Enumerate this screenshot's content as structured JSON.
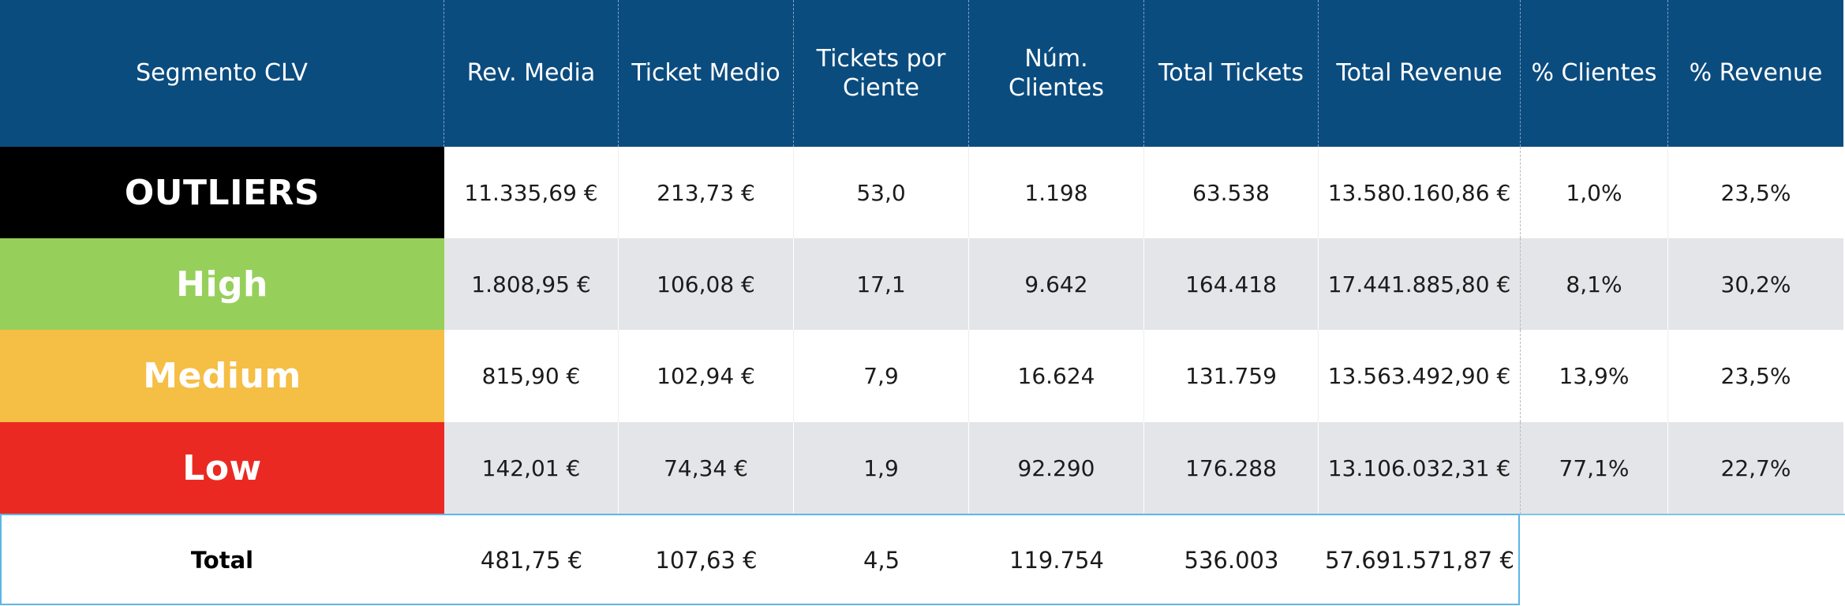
{
  "headers": [
    "Segmento CLV",
    "Rev. Media",
    "Ticket Medio",
    "Tickets por\nCiente",
    "Núm.\nClientes",
    "Total Tickets",
    "Total Revenue",
    "% Clientes",
    "% Revenue"
  ],
  "rows": [
    {
      "segment": "OUTLIERS",
      "rev_media": "11.335,69 €",
      "ticket_medio": "213,73 €",
      "tickets_por_cliente": "53,0",
      "num_clientes": "1.198",
      "total_tickets": "63.538",
      "total_revenue": "13.580.160,86 €",
      "pct_clientes": "1,0%",
      "pct_revenue": "23,5%"
    },
    {
      "segment": "High",
      "rev_media": "1.808,95 €",
      "ticket_medio": "106,08 €",
      "tickets_por_cliente": "17,1",
      "num_clientes": "9.642",
      "total_tickets": "164.418",
      "total_revenue": "17.441.885,80 €",
      "pct_clientes": "8,1%",
      "pct_revenue": "30,2%"
    },
    {
      "segment": "Medium",
      "rev_media": "815,90 €",
      "ticket_medio": "102,94 €",
      "tickets_por_cliente": "7,9",
      "num_clientes": "16.624",
      "total_tickets": "131.759",
      "total_revenue": "13.563.492,90 €",
      "pct_clientes": "13,9%",
      "pct_revenue": "23,5%"
    },
    {
      "segment": "Low",
      "rev_media": "142,01 €",
      "ticket_medio": "74,34 €",
      "tickets_por_cliente": "1,9",
      "num_clientes": "92.290",
      "total_tickets": "176.288",
      "total_revenue": "13.106.032,31 €",
      "pct_clientes": "77,1%",
      "pct_revenue": "22,7%"
    }
  ],
  "total": {
    "label": "Total",
    "rev_media": "481,75 €",
    "ticket_medio": "107,63 €",
    "tickets_por_cliente": "4,5",
    "num_clientes": "119.754",
    "total_tickets": "536.003",
    "total_revenue": "57.691.571,87 €"
  },
  "colors": {
    "header_bg": "#0b4c7f",
    "outliers": "#000000",
    "high": "#96d05b",
    "medium": "#f5be45",
    "low": "#ea2a22",
    "row_alt": "#e4e5e8",
    "total_border": "#5cb6e6"
  }
}
